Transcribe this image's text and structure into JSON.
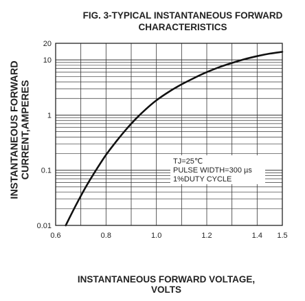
{
  "chart_data": {
    "type": "line",
    "title_lines": [
      "FIG. 3-TYPICAL INSTANTANEOUS FORWARD",
      "CHARACTERISTICS"
    ],
    "xlabel_lines": [
      "INSTANTANEOUS FORWARD VOLTAGE,",
      "VOLTS"
    ],
    "ylabel_lines": [
      "INSTANTANEOUS FORWARD",
      "CURRENT,AMPERES"
    ],
    "xlim": [
      0.6,
      1.5
    ],
    "ylim": [
      0.01,
      20
    ],
    "yscale": "log",
    "grid": true,
    "x_ticks": [
      0.6,
      0.8,
      1.0,
      1.2,
      1.4,
      1.5
    ],
    "x_tick_labels": [
      "0.6",
      "0.8",
      "1.0",
      "1.2",
      "1.4",
      "1.5"
    ],
    "y_ticks": [
      0.01,
      0.1,
      1,
      10,
      20
    ],
    "y_tick_labels": [
      "0.01",
      "0.1",
      "1",
      "10",
      "20"
    ],
    "annotation_lines": [
      "TJ=25℃",
      "PULSE WIDTH=300 µs",
      "1%DUTY CYCLE"
    ],
    "series": [
      {
        "x": [
          0.64,
          0.68,
          0.72,
          0.76,
          0.8,
          0.84,
          0.88,
          0.92,
          0.96,
          1.0,
          1.05,
          1.1,
          1.15,
          1.2,
          1.25,
          1.3,
          1.35,
          1.4,
          1.45,
          1.5
        ],
        "y": [
          0.01,
          0.023,
          0.05,
          0.1,
          0.19,
          0.33,
          0.55,
          0.87,
          1.3,
          1.85,
          2.65,
          3.6,
          4.7,
          6.0,
          7.4,
          8.8,
          10.3,
          11.7,
          13.0,
          14.0
        ]
      }
    ]
  }
}
